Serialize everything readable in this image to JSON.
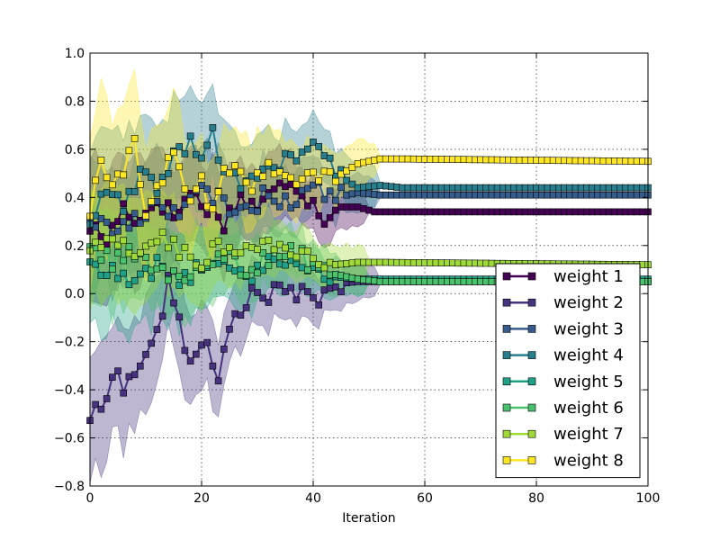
{
  "chart_data": {
    "type": "line",
    "title": "",
    "xlabel": "Iteration",
    "ylabel": "",
    "xlim": [
      0,
      100
    ],
    "ylim": [
      -0.8,
      1.0
    ],
    "xticks": [
      0,
      20,
      40,
      60,
      80,
      100
    ],
    "yticks": [
      -0.8,
      -0.6,
      -0.4,
      -0.2,
      0.0,
      0.2,
      0.4,
      0.6,
      0.8,
      1.0
    ],
    "ytick_labels": [
      "−0.8",
      "−0.6",
      "−0.4",
      "−0.2",
      "0.0",
      "0.2",
      "0.4",
      "0.6",
      "0.8",
      "1.0"
    ],
    "xtick_labels": [
      "0",
      "20",
      "40",
      "60",
      "80",
      "100"
    ],
    "grid": true,
    "legend_position": "lower-right",
    "marker": "square",
    "band_opacity": 0.35,
    "series": [
      {
        "name": "weight 1",
        "color": "#440154",
        "key_points": [
          [
            0,
            0.28
          ],
          [
            3,
            0.22
          ],
          [
            6,
            0.36
          ],
          [
            9,
            0.3
          ],
          [
            12,
            0.4
          ],
          [
            15,
            0.32
          ],
          [
            18,
            0.42
          ],
          [
            21,
            0.36
          ],
          [
            24,
            0.3
          ],
          [
            27,
            0.4
          ],
          [
            30,
            0.36
          ],
          [
            33,
            0.42
          ],
          [
            36,
            0.48
          ],
          [
            39,
            0.4
          ],
          [
            42,
            0.32
          ],
          [
            45,
            0.36
          ],
          [
            48,
            0.36
          ],
          [
            51,
            0.34
          ],
          [
            55,
            0.34
          ],
          [
            100,
            0.34
          ]
        ],
        "band_halfwidth_start": 0.28,
        "band_end": 50
      },
      {
        "name": "weight 2",
        "color": "#46327e",
        "key_points": [
          [
            0,
            -0.51
          ],
          [
            2,
            -0.49
          ],
          [
            4,
            -0.31
          ],
          [
            6,
            -0.39
          ],
          [
            8,
            -0.34
          ],
          [
            10,
            -0.24
          ],
          [
            12,
            -0.18
          ],
          [
            14,
            0.04
          ],
          [
            16,
            -0.12
          ],
          [
            18,
            -0.29
          ],
          [
            20,
            -0.18
          ],
          [
            22,
            -0.3
          ],
          [
            23,
            -0.38
          ],
          [
            25,
            -0.14
          ],
          [
            28,
            -0.02
          ],
          [
            32,
            0.0
          ],
          [
            36,
            0.01
          ],
          [
            40,
            -0.03
          ],
          [
            44,
            0.04
          ],
          [
            48,
            0.05
          ],
          [
            52,
            0.05
          ],
          [
            100,
            0.05
          ]
        ],
        "band_halfwidth_start": 0.25,
        "band_end": 52
      },
      {
        "name": "weight 3",
        "color": "#365c8d",
        "key_points": [
          [
            0,
            0.32
          ],
          [
            4,
            0.26
          ],
          [
            8,
            0.3
          ],
          [
            12,
            0.38
          ],
          [
            16,
            0.34
          ],
          [
            20,
            0.42
          ],
          [
            24,
            0.38
          ],
          [
            28,
            0.34
          ],
          [
            32,
            0.42
          ],
          [
            36,
            0.38
          ],
          [
            40,
            0.44
          ],
          [
            44,
            0.4
          ],
          [
            48,
            0.42
          ],
          [
            52,
            0.41
          ],
          [
            100,
            0.41
          ]
        ],
        "band_halfwidth_start": 0.26,
        "band_end": 52
      },
      {
        "name": "weight 4",
        "color": "#277f8e",
        "key_points": [
          [
            0,
            0.3
          ],
          [
            3,
            0.42
          ],
          [
            6,
            0.36
          ],
          [
            9,
            0.48
          ],
          [
            12,
            0.44
          ],
          [
            15,
            0.58
          ],
          [
            18,
            0.62
          ],
          [
            20,
            0.55
          ],
          [
            22,
            0.66
          ],
          [
            24,
            0.5
          ],
          [
            28,
            0.46
          ],
          [
            32,
            0.52
          ],
          [
            36,
            0.56
          ],
          [
            40,
            0.62
          ],
          [
            44,
            0.5
          ],
          [
            48,
            0.44
          ],
          [
            52,
            0.45
          ],
          [
            56,
            0.44
          ],
          [
            100,
            0.44
          ]
        ],
        "band_halfwidth_start": 0.28,
        "band_end": 52
      },
      {
        "name": "weight 5",
        "color": "#1fa187",
        "key_points": [
          [
            0,
            0.14
          ],
          [
            4,
            0.08
          ],
          [
            8,
            0.04
          ],
          [
            12,
            0.12
          ],
          [
            16,
            0.06
          ],
          [
            20,
            0.1
          ],
          [
            24,
            0.14
          ],
          [
            28,
            0.08
          ],
          [
            32,
            0.12
          ],
          [
            36,
            0.16
          ],
          [
            40,
            0.1
          ],
          [
            44,
            0.07
          ],
          [
            48,
            0.06
          ],
          [
            52,
            0.06
          ],
          [
            100,
            0.06
          ]
        ],
        "band_halfwidth_start": 0.24,
        "band_end": 50
      },
      {
        "name": "weight 6",
        "color": "#4ac16d",
        "key_points": [
          [
            0,
            0.2
          ],
          [
            4,
            0.12
          ],
          [
            8,
            0.18
          ],
          [
            12,
            0.1
          ],
          [
            16,
            0.06
          ],
          [
            20,
            0.12
          ],
          [
            24,
            0.16
          ],
          [
            28,
            0.1
          ],
          [
            32,
            0.14
          ],
          [
            36,
            0.18
          ],
          [
            40,
            0.12
          ],
          [
            44,
            0.08
          ],
          [
            48,
            0.06
          ],
          [
            52,
            0.05
          ],
          [
            100,
            0.05
          ]
        ],
        "band_halfwidth_start": 0.22,
        "band_end": 50
      },
      {
        "name": "weight 7",
        "color": "#a0da39",
        "key_points": [
          [
            0,
            0.18
          ],
          [
            4,
            0.22
          ],
          [
            8,
            0.16
          ],
          [
            12,
            0.24
          ],
          [
            16,
            0.18
          ],
          [
            20,
            0.14
          ],
          [
            24,
            0.2
          ],
          [
            28,
            0.16
          ],
          [
            32,
            0.22
          ],
          [
            36,
            0.18
          ],
          [
            40,
            0.14
          ],
          [
            44,
            0.12
          ],
          [
            48,
            0.13
          ],
          [
            52,
            0.13
          ],
          [
            100,
            0.12
          ]
        ],
        "band_halfwidth_start": 0.24,
        "band_end": 50
      },
      {
        "name": "weight 8",
        "color": "#fde725",
        "key_points": [
          [
            0,
            0.32
          ],
          [
            2,
            0.55
          ],
          [
            4,
            0.42
          ],
          [
            6,
            0.5
          ],
          [
            8,
            0.62
          ],
          [
            10,
            0.34
          ],
          [
            12,
            0.42
          ],
          [
            14,
            0.58
          ],
          [
            16,
            0.52
          ],
          [
            18,
            0.38
          ],
          [
            20,
            0.46
          ],
          [
            22,
            0.34
          ],
          [
            24,
            0.56
          ],
          [
            28,
            0.44
          ],
          [
            32,
            0.52
          ],
          [
            36,
            0.46
          ],
          [
            40,
            0.5
          ],
          [
            44,
            0.48
          ],
          [
            48,
            0.54
          ],
          [
            52,
            0.56
          ],
          [
            56,
            0.56
          ],
          [
            100,
            0.55
          ]
        ],
        "band_halfwidth_start": 0.3,
        "band_end": 52
      }
    ]
  }
}
